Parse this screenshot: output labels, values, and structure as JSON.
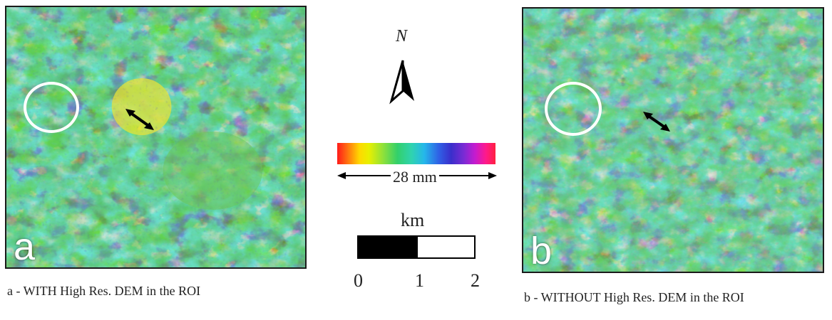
{
  "panels": [
    {
      "letter": "a",
      "caption": "a - WITH High Res. DEM in the ROI"
    },
    {
      "letter": "b",
      "caption": "b - WITHOUT High Res. DEM in the ROI"
    }
  ],
  "north": {
    "label": "N"
  },
  "colorbar": {
    "label": "28 mm"
  },
  "scalebar": {
    "unit": "km",
    "ticks": [
      "0",
      "1",
      "2"
    ]
  },
  "colors": {
    "interferogram_palette": [
      "#ff1a1a",
      "#ffd800",
      "#33d06a",
      "#25b7ea",
      "#3a2ecb",
      "#c41bd0",
      "#ff1a8a"
    ]
  }
}
